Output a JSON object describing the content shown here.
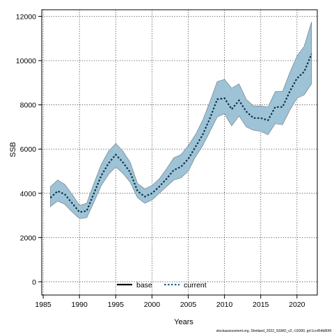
{
  "chart_data": {
    "type": "area",
    "xlabel": "Years",
    "ylabel": "SSB",
    "xlim": [
      1984.8,
      2022.8
    ],
    "ylim": [
      -600,
      12300
    ],
    "xticks": [
      1985,
      1990,
      1995,
      2000,
      2005,
      2010,
      2015,
      2020
    ],
    "yticks": [
      0,
      2000,
      4000,
      6000,
      8000,
      10000,
      12000
    ],
    "grid": true,
    "legend_position": "bottom-center",
    "legend": [
      {
        "label": "base",
        "style": "solid",
        "color": "#000000"
      },
      {
        "label": "current",
        "style": "dotted",
        "color": "#1f5f8b"
      }
    ],
    "band_color": "#9ec3d6",
    "x": [
      1986,
      1987,
      1988,
      1989,
      1990,
      1991,
      1992,
      1993,
      1994,
      1995,
      1996,
      1997,
      1998,
      1999,
      2000,
      2001,
      2002,
      2003,
      2004,
      2005,
      2006,
      2007,
      2008,
      2009,
      2010,
      2011,
      2012,
      2013,
      2014,
      2015,
      2016,
      2017,
      2018,
      2019,
      2020,
      2021,
      2022
    ],
    "series": [
      {
        "name": "current",
        "values": [
          3800,
          4100,
          3950,
          3550,
          3150,
          3200,
          4000,
          4800,
          5350,
          5750,
          5400,
          4950,
          4100,
          3850,
          4000,
          4300,
          4650,
          5050,
          5200,
          5550,
          6100,
          6650,
          7400,
          8250,
          8300,
          7800,
          8200,
          7700,
          7400,
          7400,
          7300,
          7900,
          7900,
          8600,
          9200,
          9500,
          10300
        ],
        "lower": [
          3400,
          3650,
          3500,
          3150,
          2850,
          2900,
          3600,
          4350,
          4850,
          5200,
          4900,
          4500,
          3800,
          3550,
          3700,
          4000,
          4300,
          4600,
          4700,
          5000,
          5650,
          6150,
          6800,
          7450,
          7600,
          7050,
          7500,
          7000,
          6850,
          6800,
          6650,
          7150,
          7100,
          7750,
          8300,
          8450,
          8950
        ],
        "upper": [
          4300,
          4600,
          4400,
          3950,
          3450,
          3550,
          4450,
          5300,
          5900,
          6250,
          5900,
          5400,
          4450,
          4200,
          4350,
          4650,
          5100,
          5600,
          5750,
          6150,
          6650,
          7300,
          8150,
          9050,
          9150,
          8750,
          8950,
          8250,
          7950,
          7950,
          7900,
          8600,
          8600,
          9450,
          10200,
          10650,
          11750
        ]
      }
    ]
  },
  "footnote": "stockassessment.org, Shetland_2022_SSMO_v2, r19390, git:1cc464b806f"
}
